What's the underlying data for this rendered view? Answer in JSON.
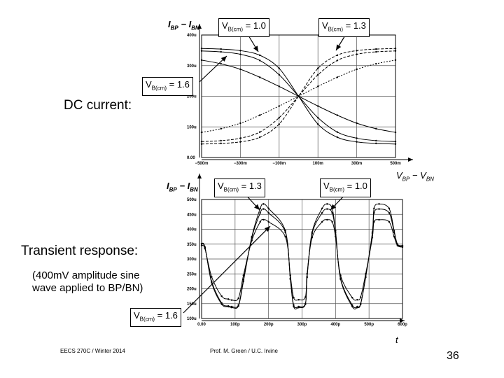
{
  "slide": {
    "dc_label": "DC current:",
    "transient_label": "Transient response:",
    "transient_note_line1": "(400mV amplitude sine",
    "transient_note_line2": "wave applied to BP/BN)",
    "footer_left": "EECS 270C / Winter 2014",
    "footer_center": "Prof. M. Green / U.C. Irvine",
    "page_number": "36"
  },
  "callouts": {
    "vcm_prefix": "V",
    "vcm_sub": "B(cm)",
    "dc_1": " = 1.0",
    "dc_2": " = 1.3",
    "dc_3": " = 1.6",
    "tr_1": " = 1.3",
    "tr_2": " = 1.0",
    "tr_3": " = 1.6"
  },
  "axis_names": {
    "dc_y_main": "I",
    "dc_y_sub1": "BP",
    "dc_y_mid": " − I",
    "dc_y_sub2": "BN",
    "dc_x_main": "V",
    "dc_x_sub1": "BP",
    "dc_x_mid": " − V",
    "dc_x_sub2": "BN",
    "tr_x": "t"
  },
  "chart_data": [
    {
      "type": "line",
      "title": "",
      "xlabel": "VBP − VBN",
      "ylabel": "IBP − IBN",
      "x_tick_labels": [
        "−500m",
        "−300m",
        "−100m",
        "100m",
        "300m",
        "500m"
      ],
      "y_tick_labels": [
        "0.00",
        "100u",
        "200u",
        "300u",
        "400u"
      ],
      "xlim": [
        -0.5,
        0.5
      ],
      "ylim": [
        0,
        0.0004
      ],
      "grid": true,
      "series": [
        {
          "x": [
            -0.5,
            -0.4,
            -0.3,
            -0.2,
            -0.1,
            0,
            0.1,
            0.2,
            0.3,
            0.4,
            0.5
          ],
          "y": [
            0.000356,
            0.000354,
            0.000349,
            0.000334,
            0.000291,
            0.0002,
            0.000109,
            6.6e-05,
            5.1e-05,
            4.6e-05,
            4.4e-05
          ]
        },
        {
          "x": [
            -0.5,
            -0.4,
            -0.3,
            -0.2,
            -0.1,
            0,
            0.1,
            0.2,
            0.3,
            0.4,
            0.5
          ],
          "y": [
            4.4e-05,
            4.6e-05,
            5.1e-05,
            6.6e-05,
            0.000109,
            0.0002,
            0.000291,
            0.000334,
            0.000349,
            0.000354,
            0.000356
          ]
        },
        {
          "x": [
            -0.5,
            -0.4,
            -0.3,
            -0.2,
            -0.1,
            0,
            0.1,
            0.2,
            0.3,
            0.4,
            0.5
          ],
          "y": [
            0.000348,
            0.000345,
            0.000337,
            0.000317,
            0.00027,
            0.0002,
            0.00013,
            8.3e-05,
            6.3e-05,
            5.5e-05,
            5.2e-05
          ]
        },
        {
          "x": [
            -0.5,
            -0.4,
            -0.3,
            -0.2,
            -0.1,
            0,
            0.1,
            0.2,
            0.3,
            0.4,
            0.5
          ],
          "y": [
            5.2e-05,
            5.5e-05,
            6.3e-05,
            8.3e-05,
            0.00013,
            0.0002,
            0.00027,
            0.000317,
            0.000337,
            0.000345,
            0.000348
          ]
        },
        {
          "x": [
            -0.5,
            -0.4,
            -0.3,
            -0.2,
            -0.1,
            0,
            0.1,
            0.2,
            0.3,
            0.4,
            0.5
          ],
          "y": [
            0.000318,
            0.000306,
            0.000288,
            0.000262,
            0.000232,
            0.0002,
            0.000168,
            0.000138,
            0.000112,
            9.4e-05,
            8.2e-05
          ]
        },
        {
          "x": [
            -0.5,
            -0.4,
            -0.3,
            -0.2,
            -0.1,
            0,
            0.1,
            0.2,
            0.3,
            0.4,
            0.5
          ],
          "y": [
            8.2e-05,
            9.4e-05,
            0.000112,
            0.000138,
            0.000168,
            0.0002,
            0.000232,
            0.000262,
            0.000288,
            0.000306,
            0.000318
          ]
        }
      ]
    },
    {
      "type": "line",
      "title": "",
      "xlabel": "t",
      "ylabel": "IBP − IBN",
      "x_tick_labels": [
        "0.00",
        "100p",
        "200p",
        "300p",
        "400p",
        "500p",
        "600p"
      ],
      "y_tick_labels": [
        "100u",
        "150u",
        "200u",
        "250u",
        "300u",
        "350u",
        "400u",
        "450u",
        "500u"
      ],
      "xlim": [
        0,
        6e-10
      ],
      "ylim": [
        0.0001,
        0.0005
      ],
      "grid": true,
      "series": [
        {
          "x": [
            0,
            1e-11,
            3e-11,
            6e-11,
            8e-11,
            9e-11,
            1.1e-10,
            1.25e-10,
            1.5e-10,
            1.75e-10,
            1.85e-10,
            2e-10,
            2.5e-10,
            2.65e-10,
            2.75e-10,
            2.9e-10,
            3.1e-10,
            3.15e-10,
            3.3e-10,
            3.6e-10,
            3.75e-10,
            3.9e-10,
            4e-10,
            4.15e-10,
            4.5e-10,
            4.65e-10,
            4.75e-10,
            4.9e-10,
            5.1e-10,
            5.15e-10,
            5.3e-10,
            5.6e-10,
            5.75e-10,
            5.85e-10,
            6e-10
          ],
          "y": [
            0.000352,
            0.00034,
            0.00022,
            0.000148,
            0.00014,
            0.000137,
            0.000142,
            0.000225,
            0.000375,
            0.00047,
            0.000485,
            0.00047,
            0.000395,
            0.000232,
            0.00014,
            0.000137,
            0.000148,
            0.00024,
            0.00039,
            0.00047,
            0.000485,
            0.00047,
            0.000395,
            0.000232,
            0.00014,
            0.000137,
            0.000148,
            0.00024,
            0.00039,
            0.00047,
            0.000485,
            0.00047,
            0.000395,
            0.00035,
            0.000345
          ]
        },
        {
          "x": [
            0,
            1e-11,
            3e-11,
            6e-11,
            8e-11,
            9e-11,
            1.1e-10,
            1.25e-10,
            1.5e-10,
            1.75e-10,
            1.85e-10,
            2e-10,
            2.5e-10,
            2.65e-10,
            2.75e-10,
            2.9e-10,
            3.1e-10,
            3.15e-10,
            3.3e-10,
            3.6e-10,
            3.75e-10,
            3.9e-10,
            4e-10,
            4.15e-10,
            4.5e-10,
            4.65e-10,
            4.75e-10,
            4.9e-10,
            5.1e-10,
            5.15e-10,
            5.3e-10,
            5.6e-10,
            5.75e-10,
            5.85e-10,
            6e-10
          ],
          "y": [
            0.00035,
            0.000338,
            0.000225,
            0.000152,
            0.000142,
            0.00014,
            0.000145,
            0.00023,
            0.000372,
            0.000455,
            0.000468,
            0.000455,
            0.00039,
            0.000235,
            0.000145,
            0.00014,
            0.00015,
            0.000238,
            0.000385,
            0.000455,
            0.000468,
            0.000455,
            0.00039,
            0.000235,
            0.000145,
            0.00014,
            0.00015,
            0.000238,
            0.000385,
            0.000455,
            0.000468,
            0.000455,
            0.00039,
            0.000348,
            0.000343
          ]
        },
        {
          "x": [
            0,
            1e-11,
            3e-11,
            6e-11,
            8e-11,
            9e-11,
            1.1e-10,
            1.25e-10,
            1.5e-10,
            1.75e-10,
            1.85e-10,
            2e-10,
            2.5e-10,
            2.65e-10,
            2.75e-10,
            2.9e-10,
            3.1e-10,
            3.15e-10,
            3.3e-10,
            3.6e-10,
            3.75e-10,
            3.9e-10,
            4e-10,
            4.15e-10,
            4.5e-10,
            4.65e-10,
            4.75e-10,
            4.9e-10,
            5.1e-10,
            5.15e-10,
            5.3e-10,
            5.6e-10,
            5.75e-10,
            5.85e-10,
            6e-10
          ],
          "y": [
            0.000345,
            0.000335,
            0.00024,
            0.000175,
            0.000165,
            0.000162,
            0.000168,
            0.000245,
            0.000362,
            0.000425,
            0.000432,
            0.000425,
            0.000375,
            0.000245,
            0.00017,
            0.000163,
            0.000172,
            0.00025,
            0.000372,
            0.000425,
            0.000432,
            0.000425,
            0.000375,
            0.000245,
            0.00017,
            0.000163,
            0.000172,
            0.00025,
            0.000372,
            0.000425,
            0.000432,
            0.000425,
            0.000375,
            0.000345,
            0.00034
          ]
        }
      ]
    }
  ]
}
